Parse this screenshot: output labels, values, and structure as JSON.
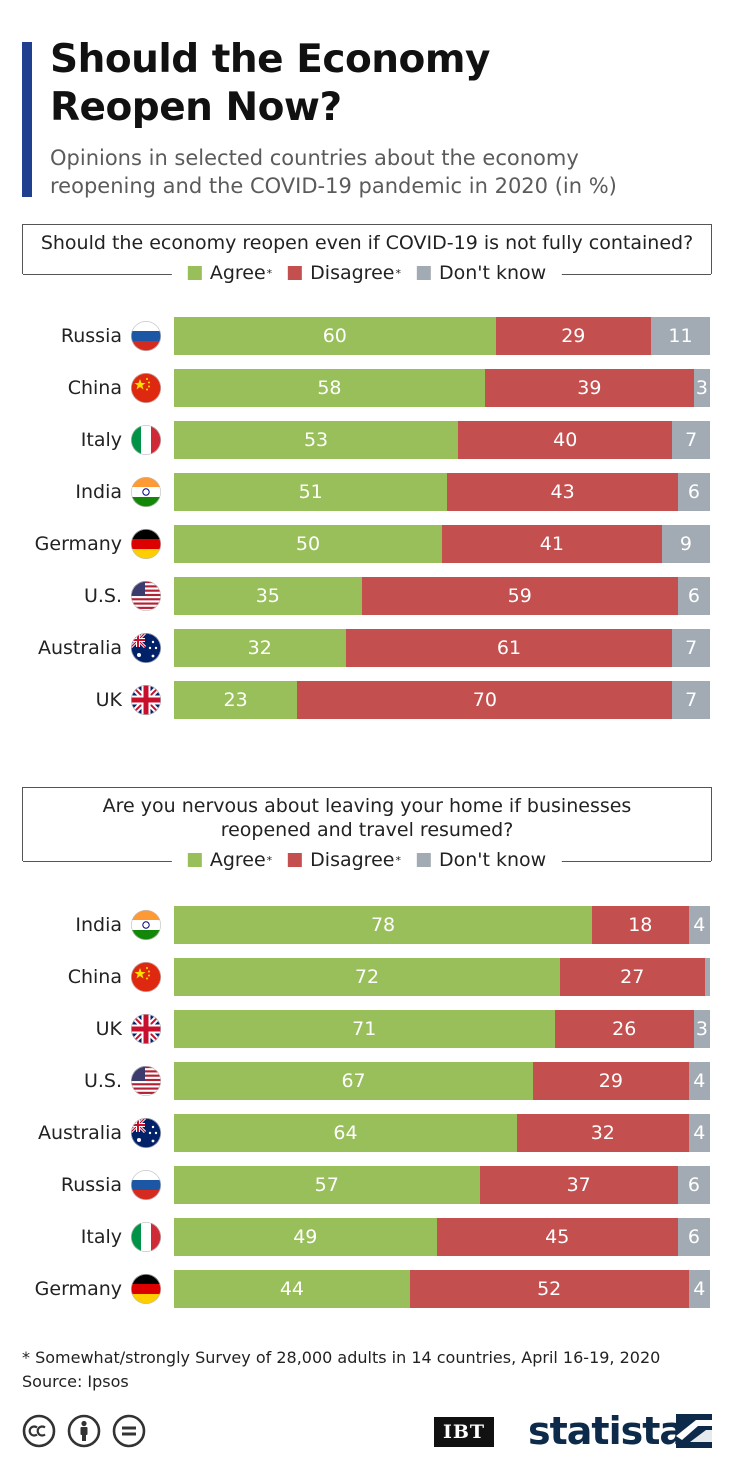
{
  "header": {
    "title_line1": "Should the Economy",
    "title_line2": "Reopen Now?",
    "subtitle_line1": "Opinions in selected countries about the economy",
    "subtitle_line2": "reopening and the COVID-19 pandemic in 2020 (in %)"
  },
  "legend": {
    "agree": "Agree",
    "disagree": "Disagree",
    "dont_know": "Don't know",
    "star": "*"
  },
  "colors": {
    "agree": "#98bf5a",
    "disagree": "#c44f4f",
    "dont_know": "#a2abb3"
  },
  "chart_data": [
    {
      "type": "bar",
      "orientation": "horizontal",
      "stacked": true,
      "title": "Should the economy reopen even if COVID-19 is not fully contained?",
      "categories": [
        "Russia",
        "China",
        "Italy",
        "India",
        "Germany",
        "U.S.",
        "Australia",
        "UK"
      ],
      "series": [
        {
          "name": "Agree",
          "values": [
            60,
            58,
            53,
            51,
            50,
            35,
            32,
            23
          ]
        },
        {
          "name": "Disagree",
          "values": [
            29,
            39,
            40,
            43,
            41,
            59,
            61,
            70
          ]
        },
        {
          "name": "Don't know",
          "values": [
            11,
            3,
            7,
            6,
            9,
            6,
            7,
            7
          ]
        }
      ],
      "xlim": [
        0,
        100
      ],
      "legend_position": "top"
    },
    {
      "type": "bar",
      "orientation": "horizontal",
      "stacked": true,
      "title_line1": "Are you nervous about leaving your home if businesses",
      "title_line2": "reopened and travel resumed?",
      "categories": [
        "India",
        "China",
        "UK",
        "U.S.",
        "Australia",
        "Russia",
        "Italy",
        "Germany"
      ],
      "series": [
        {
          "name": "Agree",
          "values": [
            78,
            72,
            71,
            67,
            64,
            57,
            49,
            44
          ]
        },
        {
          "name": "Disagree",
          "values": [
            18,
            27,
            26,
            29,
            32,
            37,
            45,
            52
          ]
        },
        {
          "name": "Don't know",
          "values": [
            4,
            1,
            3,
            4,
            4,
            6,
            6,
            4
          ]
        }
      ],
      "labels_hidden": [
        {
          "series": 2,
          "category": 1
        }
      ],
      "xlim": [
        0,
        100
      ],
      "legend_position": "top"
    }
  ],
  "footer": {
    "footnote": "* Somewhat/strongly Survey of 28,000 adults in 14 countries, April 16-19, 2020",
    "source": "Source: Ipsos",
    "ibt_logo": "IBT",
    "statista_logo": "statista",
    "icons": [
      "creative-commons-icon",
      "attribution-icon",
      "no-derivatives-icon"
    ]
  }
}
